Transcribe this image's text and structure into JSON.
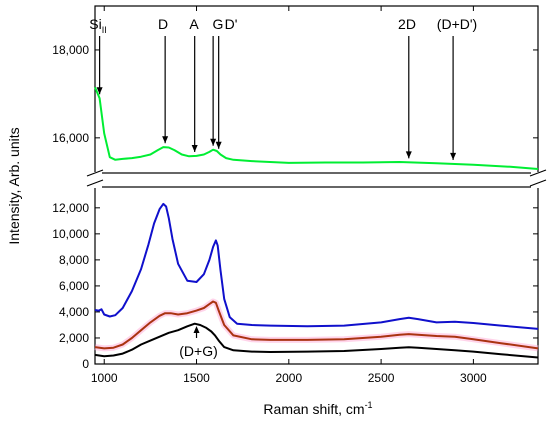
{
  "chart_data": {
    "type": "line",
    "xlabel": "Raman shift, cm",
    "xlabel_sup": "-1",
    "ylabel": "Intensity, Arb. units",
    "xlim": [
      950,
      3350
    ],
    "x_ticks": [
      1000,
      1500,
      2000,
      2500,
      3000
    ],
    "x_tick_labels": [
      "1000",
      "1500",
      "2000",
      "2500",
      "3000"
    ],
    "y_axis_broken": true,
    "y_segments": [
      {
        "name": "upper",
        "ylim": [
          15200,
          19000
        ],
        "ticks": [
          16000,
          18000
        ],
        "tick_labels": [
          "16,000",
          "18,000"
        ]
      },
      {
        "name": "lower",
        "ylim": [
          0,
          13600
        ],
        "ticks": [
          0,
          2000,
          4000,
          6000,
          8000,
          10000,
          12000
        ],
        "tick_labels": [
          "0",
          "2,000",
          "4,000",
          "6,000",
          "8,000",
          "10,000",
          "12,000"
        ]
      }
    ],
    "series": [
      {
        "color": "#00ee33",
        "segment": "upper",
        "x": [
          950,
          975,
          1000,
          1030,
          1060,
          1100,
          1150,
          1200,
          1250,
          1290,
          1320,
          1350,
          1380,
          1420,
          1460,
          1500,
          1540,
          1570,
          1590,
          1610,
          1630,
          1660,
          1700,
          1800,
          2000,
          2200,
          2400,
          2600,
          2800,
          3000,
          3200,
          3350
        ],
        "y": [
          17150,
          16900,
          16100,
          15560,
          15500,
          15520,
          15540,
          15570,
          15620,
          15720,
          15790,
          15780,
          15720,
          15620,
          15580,
          15590,
          15620,
          15680,
          15730,
          15700,
          15620,
          15540,
          15500,
          15470,
          15430,
          15440,
          15440,
          15450,
          15420,
          15390,
          15340,
          15290
        ]
      },
      {
        "color": "#1010cc",
        "segment": "lower",
        "x": [
          950,
          970,
          985,
          1000,
          1030,
          1060,
          1100,
          1150,
          1200,
          1240,
          1270,
          1300,
          1320,
          1335,
          1350,
          1370,
          1400,
          1450,
          1500,
          1540,
          1570,
          1590,
          1605,
          1615,
          1630,
          1650,
          1680,
          1720,
          1800,
          1900,
          2100,
          2300,
          2500,
          2600,
          2650,
          2700,
          2800,
          2900,
          3000,
          3150,
          3350
        ],
        "y": [
          4150,
          4100,
          4200,
          3800,
          3650,
          3750,
          4300,
          5600,
          7300,
          9200,
          10800,
          11900,
          12300,
          12100,
          11200,
          9600,
          7700,
          6400,
          6300,
          6900,
          8000,
          9000,
          9500,
          9100,
          7200,
          5000,
          3600,
          3100,
          3000,
          2950,
          2900,
          2950,
          3200,
          3450,
          3550,
          3450,
          3200,
          3250,
          3150,
          2950,
          2700
        ]
      },
      {
        "color": "#aa3311",
        "segment": "lower",
        "x": [
          950,
          1000,
          1050,
          1100,
          1150,
          1200,
          1250,
          1300,
          1330,
          1360,
          1400,
          1450,
          1500,
          1540,
          1570,
          1590,
          1605,
          1620,
          1650,
          1700,
          1800,
          1900,
          2100,
          2300,
          2500,
          2600,
          2650,
          2700,
          2800,
          2900,
          3000,
          3150,
          3350
        ],
        "y": [
          1300,
          1200,
          1250,
          1500,
          2000,
          2600,
          3200,
          3700,
          3900,
          3900,
          3800,
          3900,
          4100,
          4300,
          4600,
          4800,
          4700,
          4100,
          3000,
          2200,
          1900,
          1850,
          1850,
          1900,
          2100,
          2250,
          2300,
          2250,
          2150,
          2100,
          1900,
          1600,
          1200
        ]
      },
      {
        "color": "#000000",
        "segment": "lower",
        "x": [
          950,
          1000,
          1050,
          1100,
          1150,
          1200,
          1250,
          1300,
          1350,
          1400,
          1450,
          1490,
          1520,
          1550,
          1580,
          1600,
          1620,
          1650,
          1700,
          1800,
          1900,
          2100,
          2300,
          2500,
          2600,
          2650,
          2700,
          2800,
          2900,
          3000,
          3150,
          3350
        ],
        "y": [
          700,
          600,
          650,
          800,
          1100,
          1500,
          1800,
          2100,
          2400,
          2600,
          2900,
          3100,
          3000,
          2800,
          2500,
          2200,
          1800,
          1300,
          1050,
          950,
          920,
          950,
          1000,
          1150,
          1250,
          1280,
          1250,
          1150,
          1050,
          950,
          750,
          500
        ]
      }
    ],
    "annotations": [
      {
        "label": "Si",
        "sub": "II",
        "x": 975
      },
      {
        "label": "D",
        "x": 1330
      },
      {
        "label": "A",
        "x": 1490
      },
      {
        "label": "G",
        "x": 1590
      },
      {
        "label": "D'",
        "x": 1620
      },
      {
        "label": "2D",
        "x": 2650
      },
      {
        "label": "(D+D')",
        "x": 2890
      }
    ],
    "lower_annotation": {
      "label": "(D+G)",
      "x": 1500
    }
  }
}
